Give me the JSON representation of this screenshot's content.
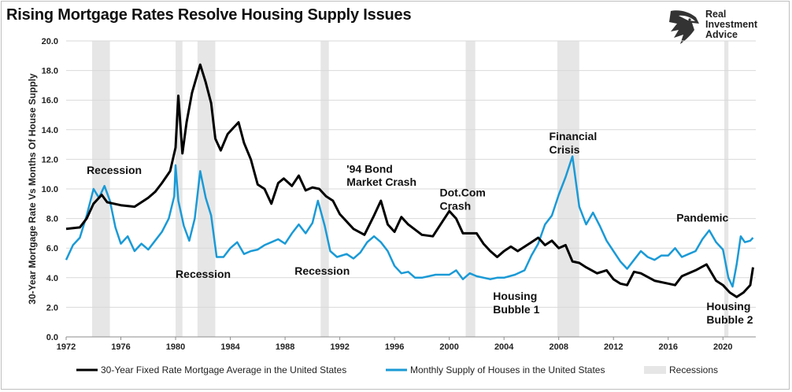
{
  "title": "Rising Mortgage Rates Resolve Housing Supply Issues",
  "logo": {
    "line1": "Real",
    "line2": "Investment",
    "line3": "Advice",
    "icon": "eagle-head-icon"
  },
  "chart_data": {
    "type": "line",
    "xlim": [
      1972,
      2022.4
    ],
    "ylim": [
      0,
      20
    ],
    "xticks": [
      1972,
      1976,
      1980,
      1984,
      1988,
      1992,
      1996,
      2000,
      2004,
      2008,
      2012,
      2016,
      2020
    ],
    "xtick_labels": [
      "1972",
      "1976",
      "1980",
      "1984",
      "1988",
      "1992",
      "1996",
      "2000",
      "2004",
      "2008",
      "2012",
      "2016",
      "2020"
    ],
    "yticks": [
      0,
      2,
      4,
      6,
      8,
      10,
      12,
      14,
      16,
      18,
      20
    ],
    "ytick_labels": [
      "0.0",
      "2.0",
      "4.0",
      "6.0",
      "8.0",
      "10.0",
      "12.0",
      "14.0",
      "16.0",
      "18.0",
      "20.0"
    ],
    "ylabel": "30-Year Mortgage Rate Vs Months Of House Supply",
    "grid": "horizontal",
    "legend_position": "bottom",
    "recessions": [
      [
        1973.9,
        1975.2
      ],
      [
        1980.0,
        1980.5
      ],
      [
        1981.6,
        1982.9
      ],
      [
        1990.6,
        1991.2
      ],
      [
        2001.2,
        2001.9
      ],
      [
        2007.9,
        2009.5
      ],
      [
        2020.1,
        2020.4
      ]
    ],
    "recession_label": "Recessions",
    "recession_color": "#e6e6e6",
    "series": [
      {
        "name": "30-Year Fixed Rate Mortgage Average in the United States",
        "color": "#000000",
        "x": [
          1972.0,
          1973.0,
          1973.5,
          1974.0,
          1974.6,
          1975.0,
          1975.5,
          1976.0,
          1977.0,
          1978.0,
          1978.5,
          1979.0,
          1979.6,
          1980.0,
          1980.2,
          1980.5,
          1980.8,
          1981.2,
          1981.8,
          1982.2,
          1982.6,
          1982.9,
          1983.3,
          1983.8,
          1984.2,
          1984.6,
          1985.0,
          1985.5,
          1986.0,
          1986.5,
          1987.0,
          1987.5,
          1987.9,
          1988.5,
          1989.0,
          1989.5,
          1990.0,
          1990.5,
          1991.0,
          1991.5,
          1992.0,
          1993.0,
          1993.8,
          1994.5,
          1995.0,
          1995.5,
          1996.0,
          1996.5,
          1997.0,
          1998.0,
          1998.8,
          1999.5,
          2000.0,
          2000.5,
          2001.0,
          2001.5,
          2002.0,
          2002.5,
          2003.0,
          2003.5,
          2004.0,
          2004.5,
          2005.0,
          2006.0,
          2006.5,
          2007.0,
          2007.5,
          2008.0,
          2008.5,
          2009.0,
          2009.5,
          2010.0,
          2010.8,
          2011.5,
          2012.0,
          2012.5,
          2013.0,
          2013.5,
          2014.0,
          2015.0,
          2016.0,
          2016.5,
          2017.0,
          2018.0,
          2018.8,
          2019.5,
          2020.0,
          2020.5,
          2021.0,
          2021.5,
          2022.0,
          2022.2
        ],
        "y": [
          7.3,
          7.4,
          8.0,
          9.0,
          9.6,
          9.1,
          9.0,
          8.9,
          8.8,
          9.4,
          9.8,
          10.4,
          11.2,
          12.8,
          16.3,
          12.4,
          14.5,
          16.5,
          18.4,
          17.2,
          15.8,
          13.4,
          12.6,
          13.7,
          14.1,
          14.5,
          13.1,
          12.0,
          10.3,
          10.0,
          9.0,
          10.4,
          10.7,
          10.2,
          10.9,
          9.9,
          10.1,
          10.0,
          9.5,
          9.2,
          8.3,
          7.3,
          6.9,
          8.2,
          9.2,
          7.6,
          7.1,
          8.1,
          7.6,
          6.9,
          6.8,
          7.8,
          8.5,
          8.0,
          7.0,
          7.0,
          7.0,
          6.3,
          5.8,
          5.4,
          5.8,
          6.1,
          5.8,
          6.4,
          6.7,
          6.2,
          6.5,
          6.0,
          6.2,
          5.1,
          5.0,
          4.7,
          4.3,
          4.5,
          3.9,
          3.6,
          3.5,
          4.4,
          4.3,
          3.8,
          3.6,
          3.5,
          4.1,
          4.5,
          4.9,
          3.8,
          3.5,
          3.0,
          2.7,
          3.0,
          3.5,
          4.7
        ]
      },
      {
        "name": "Monthly Supply of Houses in the United States",
        "color": "#1a9ad6",
        "x": [
          1972.0,
          1972.5,
          1973.0,
          1973.5,
          1974.0,
          1974.4,
          1974.8,
          1975.2,
          1975.6,
          1976.0,
          1976.5,
          1977.0,
          1977.5,
          1978.0,
          1978.5,
          1979.0,
          1979.5,
          1979.9,
          1980.0,
          1980.2,
          1980.6,
          1981.0,
          1981.4,
          1981.8,
          1982.2,
          1982.6,
          1983.0,
          1983.5,
          1984.0,
          1984.5,
          1985.0,
          1985.5,
          1986.0,
          1986.5,
          1987.0,
          1987.5,
          1988.0,
          1988.5,
          1989.0,
          1989.5,
          1990.0,
          1990.4,
          1990.9,
          1991.3,
          1991.8,
          1992.5,
          1993.0,
          1993.5,
          1994.0,
          1994.5,
          1995.0,
          1995.5,
          1996.0,
          1996.5,
          1997.0,
          1997.5,
          1998.0,
          1999.0,
          2000.0,
          2000.5,
          2001.0,
          2001.5,
          2002.0,
          2003.0,
          2003.5,
          2004.0,
          2004.8,
          2005.5,
          2006.0,
          2006.5,
          2007.0,
          2007.5,
          2008.0,
          2008.5,
          2009.0,
          2009.5,
          2010.0,
          2010.5,
          2011.0,
          2011.5,
          2012.0,
          2012.5,
          2013.0,
          2013.5,
          2014.0,
          2014.5,
          2015.0,
          2015.5,
          2016.0,
          2016.5,
          2017.0,
          2017.5,
          2018.0,
          2018.5,
          2019.0,
          2019.5,
          2020.0,
          2020.4,
          2020.7,
          2021.0,
          2021.3,
          2021.6,
          2022.0,
          2022.2
        ],
        "y": [
          5.2,
          6.2,
          6.7,
          8.2,
          10.0,
          9.4,
          10.2,
          9.2,
          7.4,
          6.3,
          6.8,
          5.8,
          6.3,
          5.9,
          6.5,
          7.1,
          8.0,
          9.5,
          11.6,
          9.2,
          7.5,
          6.5,
          8.0,
          11.2,
          9.4,
          8.2,
          5.4,
          5.4,
          6.0,
          6.4,
          5.6,
          5.8,
          5.9,
          6.2,
          6.4,
          6.6,
          6.3,
          7.0,
          7.6,
          7.0,
          7.7,
          9.2,
          7.5,
          5.8,
          5.4,
          5.6,
          5.3,
          5.7,
          6.4,
          6.8,
          6.4,
          5.8,
          4.8,
          4.3,
          4.4,
          4.0,
          4.0,
          4.2,
          4.2,
          4.5,
          3.9,
          4.3,
          4.1,
          3.9,
          4.0,
          4.0,
          4.2,
          4.5,
          5.5,
          6.3,
          7.6,
          8.2,
          9.6,
          10.8,
          12.2,
          8.8,
          7.6,
          8.4,
          7.5,
          6.5,
          5.8,
          5.1,
          4.6,
          5.2,
          5.8,
          5.4,
          5.2,
          5.5,
          5.5,
          6.0,
          5.4,
          5.6,
          5.8,
          6.6,
          7.2,
          6.4,
          5.9,
          4.0,
          3.4,
          4.9,
          6.8,
          6.4,
          6.5,
          6.7
        ]
      }
    ],
    "annotations": [
      {
        "text": "Recession",
        "x": 1973.5,
        "y": 11.0
      },
      {
        "text": "Recession",
        "x": 1980.0,
        "y": 4.0
      },
      {
        "text": "Recession",
        "x": 1988.7,
        "y": 4.2
      },
      {
        "text": "'94 Bond",
        "x": 1992.5,
        "y": 11.1
      },
      {
        "text": "Market Crash",
        "x": 1992.5,
        "y": 10.2
      },
      {
        "text": "Dot.Com",
        "x": 1999.3,
        "y": 9.5
      },
      {
        "text": "Crash",
        "x": 1999.3,
        "y": 8.6
      },
      {
        "text": "Financial",
        "x": 2007.3,
        "y": 13.3
      },
      {
        "text": "Crisis",
        "x": 2007.3,
        "y": 12.4
      },
      {
        "text": "Pandemic",
        "x": 2016.6,
        "y": 7.8
      },
      {
        "text": "Housing",
        "x": 2003.2,
        "y": 2.5
      },
      {
        "text": "Bubble 1",
        "x": 2003.2,
        "y": 1.6
      },
      {
        "text": "Housing",
        "x": 2018.8,
        "y": 1.8
      },
      {
        "text": "Bubble 2",
        "x": 2018.8,
        "y": 0.9
      }
    ]
  }
}
